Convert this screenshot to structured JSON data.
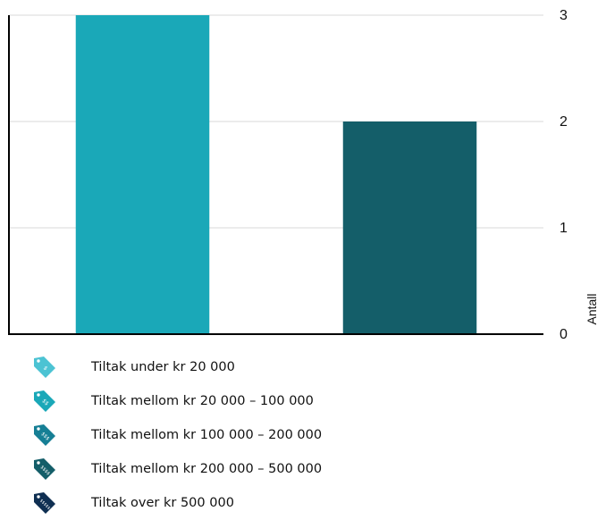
{
  "chart_data": {
    "type": "bar",
    "categories": [
      "Tiltak under kr 20 000",
      "Tiltak mellom kr 20 000 – 100 000"
    ],
    "series": [
      {
        "values": [
          3,
          2
        ]
      }
    ],
    "bar_colors": [
      "#1aa8b8",
      "#145e69"
    ],
    "ylabel": "Antall",
    "ylim": [
      0,
      3
    ],
    "yticks": [
      0,
      1,
      2,
      3
    ],
    "y_axis_side": "right",
    "grid": true,
    "legend_position": "bottom"
  },
  "legend": {
    "items": [
      {
        "label": "Tiltak under kr 20 000",
        "color": "#4cc3d3",
        "icon": "price-tag-icon",
        "icon_text": "$"
      },
      {
        "label": "Tiltak mellom kr 20 000 – 100 000",
        "color": "#1aa8b8",
        "icon": "price-tag-icon",
        "icon_text": "$$"
      },
      {
        "label": "Tiltak mellom kr 100 000 – 200 000",
        "color": "#167f95",
        "icon": "price-tag-icon",
        "icon_text": "$$$"
      },
      {
        "label": "Tiltak mellom kr 200 000 – 500 000",
        "color": "#145e69",
        "icon": "price-tag-icon",
        "icon_text": "$$$$"
      },
      {
        "label": "Tiltak over kr 500 000",
        "color": "#0f2f52",
        "icon": "price-tag-icon",
        "icon_text": "$$$$$"
      }
    ]
  }
}
